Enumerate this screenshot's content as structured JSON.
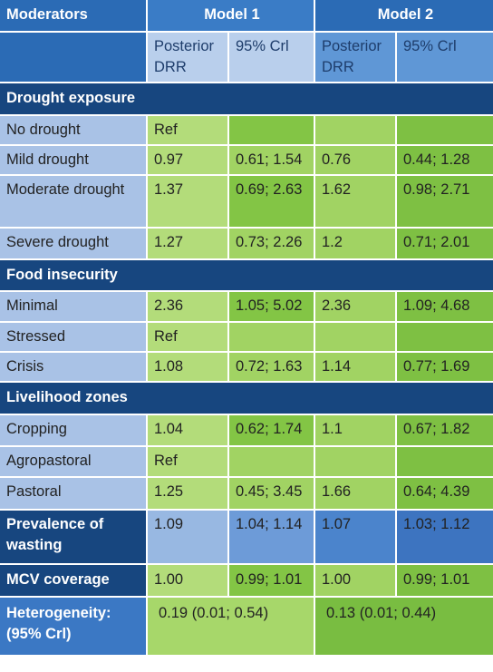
{
  "header": {
    "moderators": "Moderators",
    "model1": "Model 1",
    "model2": "Model 2",
    "posterior_drr": "Posterior DRR",
    "cri": "95% Crl"
  },
  "sections": [
    {
      "title": "Drought exposure",
      "rows": [
        {
          "label": "No drought",
          "m1_drr": "Ref",
          "m1_cri": "",
          "m2_drr": "",
          "m2_cri": ""
        },
        {
          "label": "Mild drought",
          "m1_drr": "0.97",
          "m1_cri": "0.61; 1.54",
          "m2_drr": "0.76",
          "m2_cri": "0.44; 1.28"
        },
        {
          "label": "Moderate drought",
          "m1_drr": "1.37",
          "m1_cri": "0.69; 2.63",
          "m2_drr": "1.62",
          "m2_cri": "0.98; 2.71"
        },
        {
          "label": "Severe drought",
          "m1_drr": "1.27",
          "m1_cri": "0.73; 2.26",
          "m2_drr": "1.2",
          "m2_cri": "0.71; 2.01"
        }
      ]
    },
    {
      "title": "Food insecurity",
      "rows": [
        {
          "label": "Minimal",
          "m1_drr": "2.36",
          "m1_cri": "1.05; 5.02",
          "m2_drr": "2.36",
          "m2_cri": "1.09; 4.68"
        },
        {
          "label": "Stressed",
          "m1_drr": "Ref",
          "m1_cri": "",
          "m2_drr": "",
          "m2_cri": ""
        },
        {
          "label": "Crisis",
          "m1_drr": "1.08",
          "m1_cri": "0.72; 1.63",
          "m2_drr": "1.14",
          "m2_cri": "0.77; 1.69"
        }
      ]
    },
    {
      "title": "Livelihood zones",
      "rows": [
        {
          "label": "Cropping",
          "m1_drr": "1.04",
          "m1_cri": "0.62; 1.74",
          "m2_drr": "1.1",
          "m2_cri": "0.67; 1.82"
        },
        {
          "label": "Agropastoral",
          "m1_drr": "Ref",
          "m1_cri": "",
          "m2_drr": "",
          "m2_cri": ""
        },
        {
          "label": "Pastoral",
          "m1_drr": "1.25",
          "m1_cri": "0.45; 3.45",
          "m2_drr": "1.66",
          "m2_cri": "0.64; 4.39"
        }
      ]
    }
  ],
  "wasting": {
    "label": "Prevalence of wasting",
    "m1_drr": "1.09",
    "m1_cri": "1.04; 1.14",
    "m2_drr": "1.07",
    "m2_cri": "1.03; 1.12"
  },
  "mcv": {
    "label": "MCV coverage",
    "m1_drr": "1.00",
    "m1_cri": "0.99; 1.01",
    "m2_drr": "1.00",
    "m2_cri": "0.99; 1.01"
  },
  "heterogeneity": {
    "label": "Heterogeneity: (95% Crl)",
    "m1": "0.19 (0.01; 0.54)",
    "m2": "0.13 (0.01; 0.44)"
  }
}
